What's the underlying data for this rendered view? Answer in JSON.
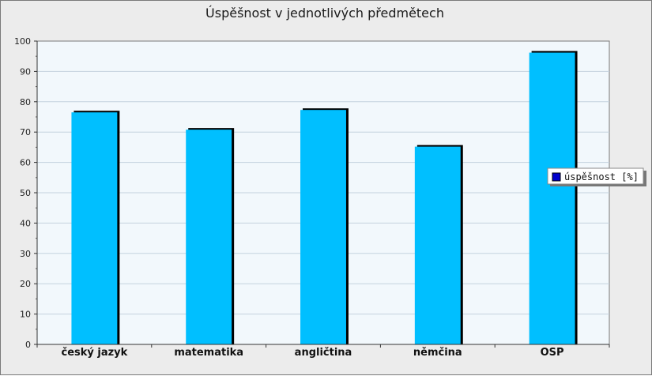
{
  "chart_data": {
    "type": "bar",
    "title": "Úspěšnost v jednotlivých předmětech",
    "categories": [
      "český jazyk",
      "matematika",
      "angličtina",
      "němčina",
      "OSP"
    ],
    "series": [
      {
        "name": "úspěšnost [%]",
        "values": [
          76.5,
          70.8,
          77.3,
          65.2,
          96.2
        ]
      }
    ],
    "ylim": [
      0,
      100
    ],
    "yticks": [
      0,
      10,
      20,
      30,
      40,
      50,
      60,
      70,
      80,
      90,
      100
    ],
    "grid": true,
    "legend_position": "right",
    "colors": {
      "bar_fill": "#00bfff",
      "bar_shadow": "#000000",
      "plot_background": "#f2f8fc",
      "grid_line": "#c4d2de",
      "legend_swatch": "#0000cc"
    }
  }
}
